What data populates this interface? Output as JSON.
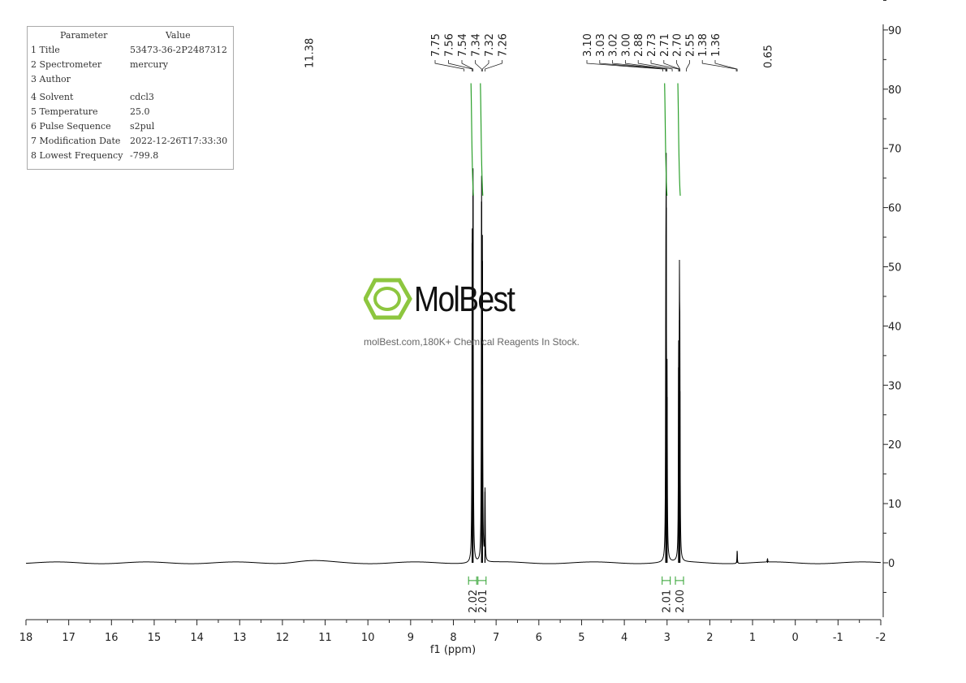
{
  "params_table": {
    "header": [
      "Parameter",
      "Value"
    ],
    "rows": [
      [
        "1 Title",
        "53473-36-2P2487312"
      ],
      [
        "2 Spectrometer",
        "mercury"
      ],
      [
        "3 Author",
        ""
      ],
      [
        "4 Solvent",
        "cdcl3"
      ],
      [
        "5 Temperature",
        "25.0"
      ],
      [
        "6 Pulse Sequence",
        "s2pul"
      ],
      [
        "7 Modification Date",
        "2022-12-26T17:33:30"
      ],
      [
        "8 Lowest Frequency",
        "-799.8"
      ]
    ]
  },
  "watermark": {
    "logo_text": "MolBest",
    "tagline": "molBest.com,180K+ Chemical Reagents In Stock."
  },
  "colors": {
    "spectrum": "#000000",
    "integral": "#2ca02c",
    "logo": "#8dc63f"
  },
  "chart_data": {
    "type": "line",
    "xlabel": "f1 (ppm)",
    "xlim": [
      18,
      -2
    ],
    "ylim": [
      -10,
      90
    ],
    "x_ticks": [
      "18",
      "17",
      "16",
      "15",
      "14",
      "13",
      "12",
      "11",
      "10",
      "9",
      "8",
      "7",
      "6",
      "5",
      "4",
      "3",
      "2",
      "1",
      "0",
      "-1",
      "-2"
    ],
    "y_ticks": [
      "0",
      "10",
      "20",
      "30",
      "40",
      "50",
      "60",
      "70",
      "80",
      "90"
    ],
    "peak_labels_group1": [
      "7.75",
      "7.56",
      "7.54",
      "7.34",
      "7.32",
      "7.26"
    ],
    "peak_labels_group2": [
      "3.10",
      "3.03",
      "3.02",
      "3.00",
      "2.88",
      "2.73",
      "2.71",
      "2.70",
      "2.55",
      "1.38",
      "1.36"
    ],
    "peak_labels_single": [
      "11.38",
      "0.65"
    ],
    "peaks": [
      {
        "ppm": 7.56,
        "height": 54
      },
      {
        "ppm": 7.54,
        "height": 63
      },
      {
        "ppm": 7.34,
        "height": 61
      },
      {
        "ppm": 7.32,
        "height": 51
      },
      {
        "ppm": 7.26,
        "height": 12
      },
      {
        "ppm": 3.03,
        "height": 36
      },
      {
        "ppm": 3.02,
        "height": 60
      },
      {
        "ppm": 3.0,
        "height": 28
      },
      {
        "ppm": 2.73,
        "height": 33
      },
      {
        "ppm": 2.71,
        "height": 41
      },
      {
        "ppm": 2.7,
        "height": 29
      },
      {
        "ppm": 1.36,
        "height": 2
      },
      {
        "ppm": 0.65,
        "height": 0.6
      }
    ],
    "integrals": [
      {
        "center": 7.55,
        "value": "2.02"
      },
      {
        "center": 7.33,
        "value": "2.01"
      },
      {
        "center": 3.02,
        "value": "2.01"
      },
      {
        "center": 2.71,
        "value": "2.00"
      }
    ]
  }
}
